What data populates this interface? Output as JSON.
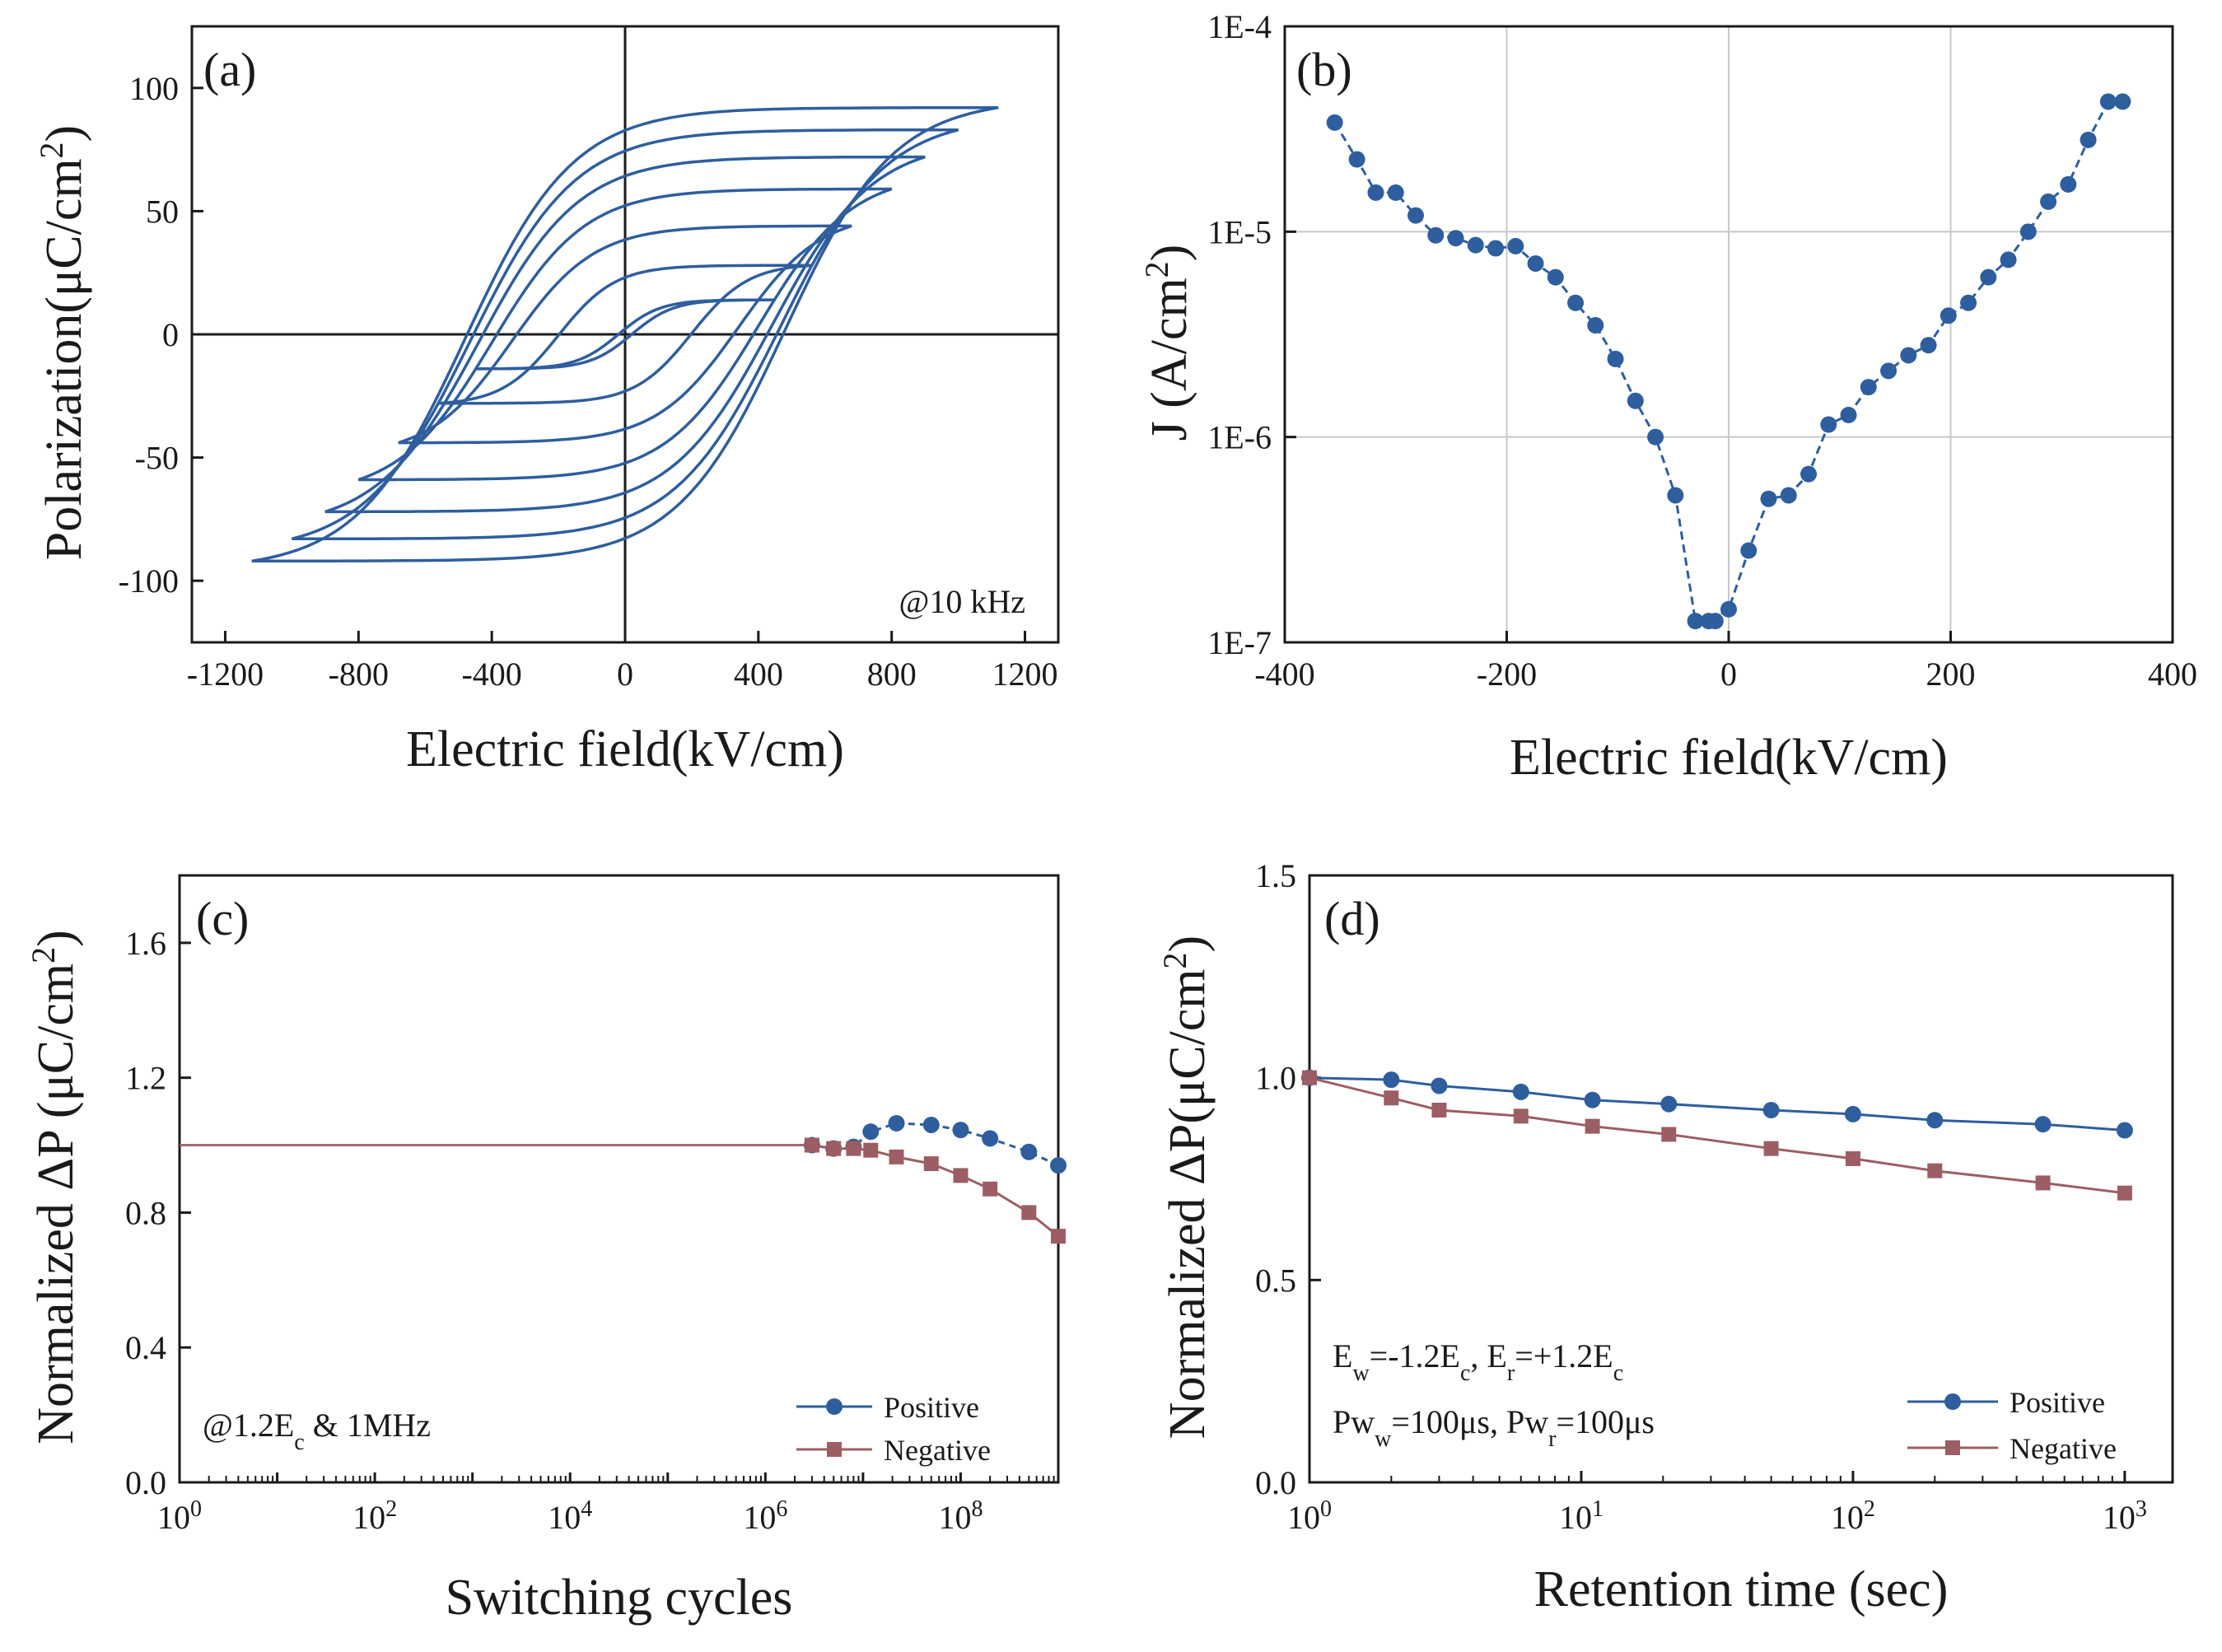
{
  "colors": {
    "blue": "#2E5E9E",
    "red": "#9C5E63",
    "axis": "#1a1a1a",
    "grid": "#c8c8c8"
  },
  "chart_data": [
    {
      "id": "a",
      "panel_label": "(a)",
      "type": "line",
      "title": "",
      "xlabel": "Electric field(kV/cm)",
      "ylabel": "Polarization(μC/cm²)",
      "xlim": [
        -1300,
        1300
      ],
      "ylim": [
        -125,
        125
      ],
      "xticks": [
        "-1200",
        "-800",
        "-400",
        "0",
        "400",
        "800",
        "1200"
      ],
      "yticks": [
        "-100",
        "-50",
        "0",
        "50",
        "100"
      ],
      "annotation": "@10 kHz",
      "loops": [
        {
          "emax": 450,
          "pmax": 14,
          "pr": 2,
          "ec": 20
        },
        {
          "emax": 560,
          "pmax": 28,
          "pr": 11,
          "ec": 200
        },
        {
          "emax": 680,
          "pmax": 44,
          "pr": 24,
          "ec": 340
        },
        {
          "emax": 800,
          "pmax": 59,
          "pr": 37,
          "ec": 400
        },
        {
          "emax": 900,
          "pmax": 72,
          "pr": 48,
          "ec": 440
        },
        {
          "emax": 1000,
          "pmax": 83,
          "pr": 58,
          "ec": 465
        },
        {
          "emax": 1120,
          "pmax": 92,
          "pr": 68,
          "ec": 480
        }
      ]
    },
    {
      "id": "b",
      "panel_label": "(b)",
      "type": "line",
      "title": "",
      "xlabel": "Electric field(kV/cm)",
      "ylabel": "J (A/cm²)",
      "xlim": [
        -400,
        400
      ],
      "ylim": [
        1e-07,
        0.0001
      ],
      "yscale": "log",
      "xticks": [
        "-400",
        "-200",
        "0",
        "200",
        "400"
      ],
      "yticks": [
        "1E-7",
        "1E-6",
        "1E-5",
        "1E-4"
      ],
      "x": [
        -355,
        -335,
        -318,
        -300,
        -282,
        -264,
        -246,
        -228,
        -210,
        -192,
        -174,
        -156,
        -138,
        -120,
        -102,
        -84,
        -66,
        -48,
        -30,
        -12,
        -18,
        0,
        18,
        36,
        54,
        72,
        90,
        108,
        126,
        144,
        162,
        180,
        198,
        216,
        234,
        252,
        270,
        288,
        306,
        324,
        342,
        355
      ],
      "y": [
        3.4e-05,
        2.25e-05,
        1.55e-05,
        1.55e-05,
        1.2e-05,
        9.6e-06,
        9.3e-06,
        8.6e-06,
        8.3e-06,
        8.5e-06,
        7e-06,
        6e-06,
        4.5e-06,
        3.5e-06,
        2.4e-06,
        1.5e-06,
        1e-06,
        5.2e-07,
        1.27e-07,
        1.27e-07,
        1.27e-07,
        1.45e-07,
        2.8e-07,
        5e-07,
        5.2e-07,
        6.6e-07,
        1.15e-06,
        1.28e-06,
        1.75e-06,
        2.1e-06,
        2.5e-06,
        2.8e-06,
        3.9e-06,
        4.5e-06,
        6e-06,
        7.3e-06,
        1e-05,
        1.4e-05,
        1.7e-05,
        2.8e-05,
        4.3e-05,
        4.3e-05
      ],
      "grid": true
    },
    {
      "id": "c",
      "panel_label": "(c)",
      "type": "line",
      "title": "",
      "xlabel": "Switching cycles",
      "ylabel": "Normalized ΔP (μC/cm²)",
      "xscale": "log",
      "xlim": [
        1,
        1000000000.0
      ],
      "ylim": [
        0,
        1.8
      ],
      "xticks_exp": [
        "0",
        "2",
        "4",
        "6",
        "8"
      ],
      "yticks": [
        "0.0",
        "0.4",
        "0.8",
        "1.2",
        "1.6"
      ],
      "annotation_main": "@1.2E",
      "annotation_sub": "c",
      "annotation_tail": " & 1MHz",
      "legend": "bottom-right",
      "series": [
        {
          "name": "Positive",
          "marker": "circle",
          "x": [
            1,
            3000000,
            5000000,
            8000000,
            12000000,
            22000000,
            50000000,
            100000000,
            200000000,
            500000000,
            1000000000
          ],
          "y": [
            1,
            1,
            0.99,
            0.995,
            1.04,
            1.065,
            1.06,
            1.045,
            1.02,
            0.98,
            0.94
          ]
        },
        {
          "name": "Negative",
          "marker": "square",
          "x": [
            1,
            3000000,
            5000000,
            8000000,
            12000000,
            22000000,
            50000000,
            100000000,
            200000000,
            500000000,
            1000000000
          ],
          "y": [
            1,
            1,
            0.99,
            0.99,
            0.985,
            0.965,
            0.945,
            0.91,
            0.87,
            0.8,
            0.73
          ]
        }
      ]
    },
    {
      "id": "d",
      "panel_label": "(d)",
      "type": "line",
      "title": "",
      "xlabel": "Retention time (sec)",
      "ylabel": "Normalized ΔP(μC/cm²)",
      "xscale": "log",
      "xlim": [
        1,
        1500
      ],
      "ylim": [
        0,
        1.5
      ],
      "xticks_exp": [
        "0",
        "1",
        "2",
        "3"
      ],
      "yticks": [
        "0.0",
        "0.5",
        "1.0",
        "1.5"
      ],
      "annotation_line1": [
        "E",
        "w",
        "=-1.2E",
        "c",
        ", E",
        "r",
        "=+1.2E",
        "c"
      ],
      "annotation_line2": [
        "Pw",
        "w",
        "=100μs, Pw",
        "r",
        "=100μs"
      ],
      "legend": "bottom-right",
      "series": [
        {
          "name": "Positive",
          "marker": "circle",
          "x": [
            1,
            2,
            3,
            6,
            11,
            21,
            50,
            100,
            200,
            500,
            1000
          ],
          "y": [
            1,
            0.995,
            0.98,
            0.965,
            0.945,
            0.935,
            0.92,
            0.91,
            0.895,
            0.885,
            0.87
          ]
        },
        {
          "name": "Negative",
          "marker": "square",
          "x": [
            1,
            2,
            3,
            6,
            11,
            21,
            50,
            100,
            200,
            500,
            1000
          ],
          "y": [
            1,
            0.95,
            0.92,
            0.905,
            0.88,
            0.86,
            0.825,
            0.8,
            0.77,
            0.74,
            0.715
          ]
        }
      ]
    }
  ]
}
